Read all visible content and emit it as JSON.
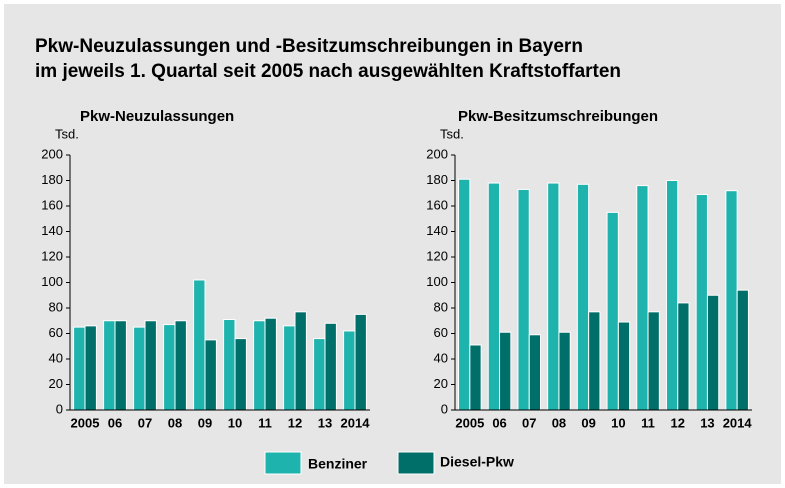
{
  "title": [
    "Pkw-Neuzulassungen und -Besitzumschreibungen in Bayern",
    "im jeweils 1. Quartal seit 2005 nach ausgewählten Kraftstoffarten"
  ],
  "chart_data": [
    {
      "type": "bar",
      "title": "Pkw-Neuzulassungen",
      "y_unit": "Tsd.",
      "categories": [
        "2005",
        "06",
        "07",
        "08",
        "09",
        "10",
        "11",
        "12",
        "13",
        "2014"
      ],
      "series": [
        {
          "name": "Benziner",
          "color": "#1fb3ae",
          "values": [
            65,
            70,
            65,
            67,
            102,
            71,
            70,
            66,
            56,
            62
          ]
        },
        {
          "name": "Diesel-Pkw",
          "color": "#006f69",
          "values": [
            66,
            70,
            70,
            70,
            55,
            56,
            72,
            77,
            68,
            75
          ]
        }
      ],
      "ylim": [
        0,
        200
      ],
      "yticks": [
        0,
        20,
        40,
        60,
        80,
        100,
        120,
        140,
        160,
        180,
        200
      ],
      "grid": false
    },
    {
      "type": "bar",
      "title": "Pkw-Besitzumschreibungen",
      "y_unit": "Tsd.",
      "categories": [
        "2005",
        "06",
        "07",
        "08",
        "09",
        "10",
        "11",
        "12",
        "13",
        "2014"
      ],
      "series": [
        {
          "name": "Benziner",
          "color": "#1fb3ae",
          "values": [
            181,
            178,
            173,
            178,
            177,
            155,
            176,
            180,
            169,
            172
          ]
        },
        {
          "name": "Diesel-Pkw",
          "color": "#006f69",
          "values": [
            51,
            61,
            59,
            61,
            77,
            69,
            77,
            84,
            90,
            94
          ]
        }
      ],
      "ylim": [
        0,
        200
      ],
      "yticks": [
        0,
        20,
        40,
        60,
        80,
        100,
        120,
        140,
        160,
        180,
        200
      ],
      "grid": false
    }
  ]
}
